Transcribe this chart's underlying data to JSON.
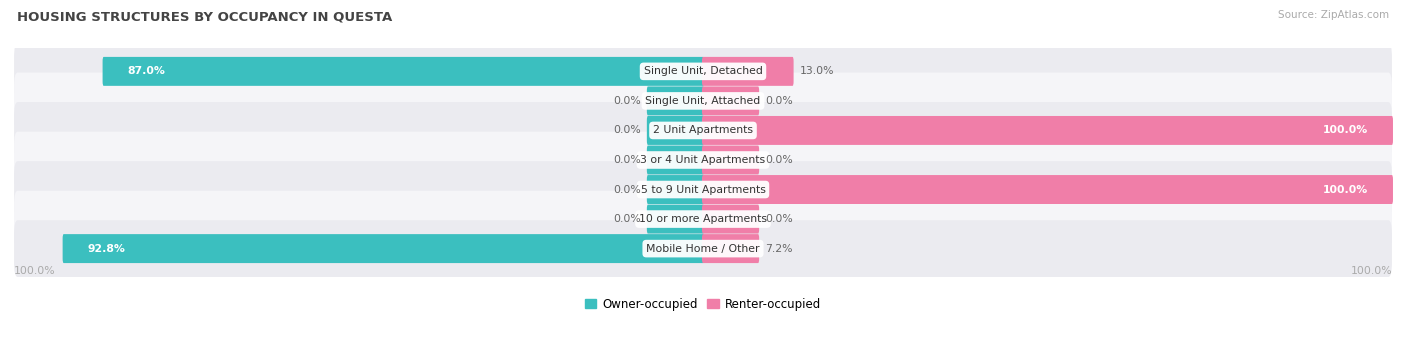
{
  "title": "HOUSING STRUCTURES BY OCCUPANCY IN QUESTA",
  "source": "Source: ZipAtlas.com",
  "categories": [
    "Single Unit, Detached",
    "Single Unit, Attached",
    "2 Unit Apartments",
    "3 or 4 Unit Apartments",
    "5 to 9 Unit Apartments",
    "10 or more Apartments",
    "Mobile Home / Other"
  ],
  "owner_pct": [
    87.0,
    0.0,
    0.0,
    0.0,
    0.0,
    0.0,
    92.8
  ],
  "renter_pct": [
    13.0,
    0.0,
    100.0,
    0.0,
    100.0,
    0.0,
    7.2
  ],
  "owner_color": "#3BBFBF",
  "renter_color": "#F07EA8",
  "row_bg_colors": [
    "#EBEBF0",
    "#F5F5F8",
    "#EBEBF0",
    "#F5F5F8",
    "#EBEBF0",
    "#F5F5F8",
    "#EBEBF0"
  ],
  "title_color": "#444444",
  "label_color": "#666666",
  "value_color_inside": "#ffffff",
  "value_color_outside": "#666666",
  "axis_label_color": "#aaaaaa",
  "legend_owner": "Owner-occupied",
  "legend_renter": "Renter-occupied",
  "figsize": [
    14.06,
    3.41
  ],
  "dpi": 100,
  "min_stub_pct": 8.0
}
